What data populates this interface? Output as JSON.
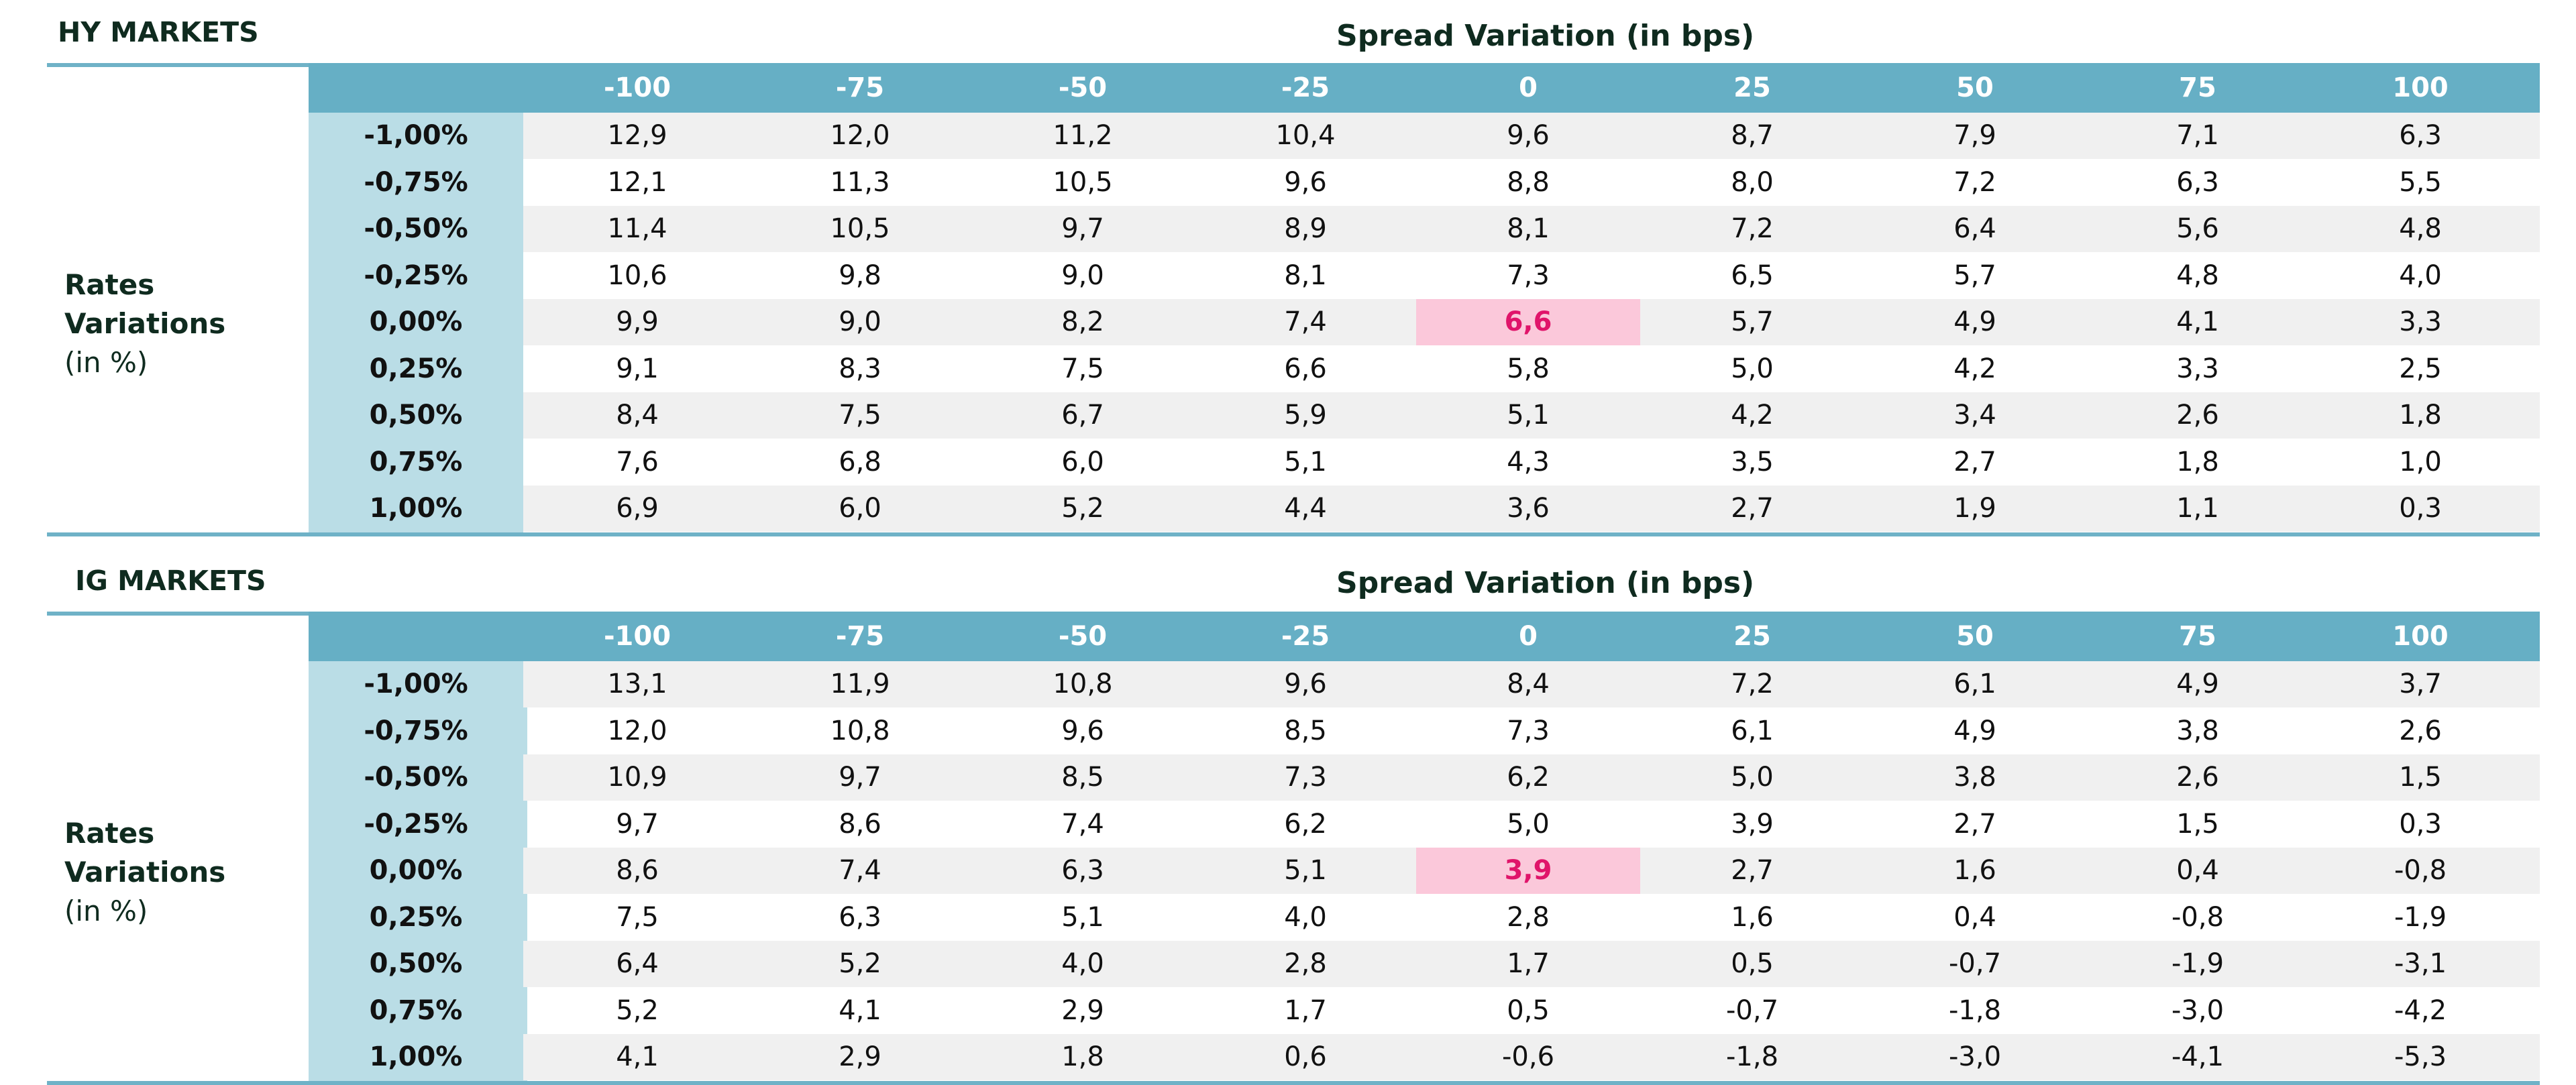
{
  "col_headers": [
    "-100",
    "-75",
    "-50",
    "-25",
    "0",
    "25",
    "50",
    "75",
    "100"
  ],
  "row_headers": [
    "-1,00%",
    "-0,75%",
    "-0,50%",
    "-0,25%",
    "0,00%",
    "0,25%",
    "0,50%",
    "0,75%",
    "1,00%"
  ],
  "side_label": {
    "line1": "Rates",
    "line2": "Variations",
    "line3": "(in %)"
  },
  "spread_title": "Spread Variation (in bps)",
  "colors": {
    "header_bg": "#66afc5",
    "row_label_bg": "#badde6",
    "band_bg": "#f0f0f0",
    "highlight_bg": "#fbc8da",
    "highlight_text": "#e0146a",
    "rule": "#6fb2c7"
  },
  "hy": {
    "title": "HY MARKETS",
    "highlight": {
      "row": 4,
      "col": 4
    },
    "rows": [
      [
        "12,9",
        "12,0",
        "11,2",
        "10,4",
        "9,6",
        "8,7",
        "7,9",
        "7,1",
        "6,3"
      ],
      [
        "12,1",
        "11,3",
        "10,5",
        "9,6",
        "8,8",
        "8,0",
        "7,2",
        "6,3",
        "5,5"
      ],
      [
        "11,4",
        "10,5",
        "9,7",
        "8,9",
        "8,1",
        "7,2",
        "6,4",
        "5,6",
        "4,8"
      ],
      [
        "10,6",
        "9,8",
        "9,0",
        "8,1",
        "7,3",
        "6,5",
        "5,7",
        "4,8",
        "4,0"
      ],
      [
        "9,9",
        "9,0",
        "8,2",
        "7,4",
        "6,6",
        "5,7",
        "4,9",
        "4,1",
        "3,3"
      ],
      [
        "9,1",
        "8,3",
        "7,5",
        "6,6",
        "5,8",
        "5,0",
        "4,2",
        "3,3",
        "2,5"
      ],
      [
        "8,4",
        "7,5",
        "6,7",
        "5,9",
        "5,1",
        "4,2",
        "3,4",
        "2,6",
        "1,8"
      ],
      [
        "7,6",
        "6,8",
        "6,0",
        "5,1",
        "4,3",
        "3,5",
        "2,7",
        "1,8",
        "1,0"
      ],
      [
        "6,9",
        "6,0",
        "5,2",
        "4,4",
        "3,6",
        "2,7",
        "1,9",
        "1,1",
        "0,3"
      ]
    ]
  },
  "ig": {
    "title": "IG MARKETS",
    "highlight": {
      "row": 4,
      "col": 4
    },
    "rows": [
      [
        "13,1",
        "11,9",
        "10,8",
        "9,6",
        "8,4",
        "7,2",
        "6,1",
        "4,9",
        "3,7"
      ],
      [
        "12,0",
        "10,8",
        "9,6",
        "8,5",
        "7,3",
        "6,1",
        "4,9",
        "3,8",
        "2,6"
      ],
      [
        "10,9",
        "9,7",
        "8,5",
        "7,3",
        "6,2",
        "5,0",
        "3,8",
        "2,6",
        "1,5"
      ],
      [
        "9,7",
        "8,6",
        "7,4",
        "6,2",
        "5,0",
        "3,9",
        "2,7",
        "1,5",
        "0,3"
      ],
      [
        "8,6",
        "7,4",
        "6,3",
        "5,1",
        "3,9",
        "2,7",
        "1,6",
        "0,4",
        "-0,8"
      ],
      [
        "7,5",
        "6,3",
        "5,1",
        "4,0",
        "2,8",
        "1,6",
        "0,4",
        "-0,8",
        "-1,9"
      ],
      [
        "6,4",
        "5,2",
        "4,0",
        "2,8",
        "1,7",
        "0,5",
        "-0,7",
        "-1,9",
        "-3,1"
      ],
      [
        "5,2",
        "4,1",
        "2,9",
        "1,7",
        "0,5",
        "-0,7",
        "-1,8",
        "-3,0",
        "-4,2"
      ],
      [
        "4,1",
        "2,9",
        "1,8",
        "0,6",
        "-0,6",
        "-1,8",
        "-3,0",
        "-4,1",
        "-5,3"
      ]
    ]
  }
}
